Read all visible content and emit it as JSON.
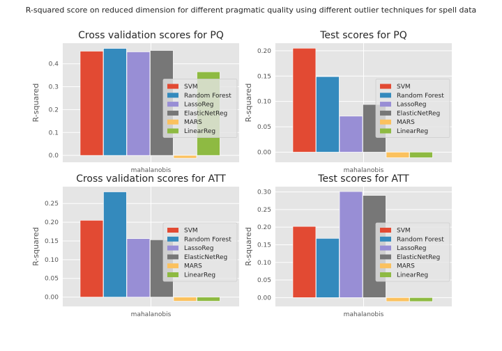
{
  "figure": {
    "title": "R-squared score on reduced dimension for different pragmatic quality using different outlier techniques for spell data"
  },
  "legend_entries": [
    {
      "name": "SVM",
      "color": "#E24A33"
    },
    {
      "name": "Random Forest",
      "color": "#348ABD"
    },
    {
      "name": "LassoReg",
      "color": "#988ED5"
    },
    {
      "name": "ElasticNetReg",
      "color": "#777777"
    },
    {
      "name": "MARS",
      "color": "#FBC15E"
    },
    {
      "name": "LinearReg",
      "color": "#8EBA42"
    }
  ],
  "chart_data": [
    {
      "type": "bar",
      "title": "Cross validation scores for PQ",
      "xlabel": "",
      "ylabel": "R-squared",
      "categories": [
        "mahalanobis"
      ],
      "series": [
        {
          "name": "SVM",
          "values": [
            0.455
          ]
        },
        {
          "name": "Random Forest",
          "values": [
            0.467
          ]
        },
        {
          "name": "LassoReg",
          "values": [
            0.452
          ]
        },
        {
          "name": "ElasticNetReg",
          "values": [
            0.458
          ]
        },
        {
          "name": "MARS",
          "values": [
            -0.012
          ]
        },
        {
          "name": "LinearReg",
          "values": [
            0.365
          ]
        }
      ],
      "ylim": [
        -0.03,
        0.49
      ],
      "yticks": [
        0.0,
        0.1,
        0.2,
        0.3,
        0.4
      ],
      "ytick_labels": [
        "0.0",
        "0.1",
        "0.2",
        "0.3",
        "0.4"
      ],
      "grid": true,
      "legend": "center-right"
    },
    {
      "type": "bar",
      "title": "Test scores for PQ",
      "xlabel": "",
      "ylabel": "R-squared",
      "categories": [
        "mahalanobis"
      ],
      "series": [
        {
          "name": "SVM",
          "values": [
            0.205
          ]
        },
        {
          "name": "Random Forest",
          "values": [
            0.149
          ]
        },
        {
          "name": "LassoReg",
          "values": [
            0.071
          ]
        },
        {
          "name": "ElasticNetReg",
          "values": [
            0.094
          ]
        },
        {
          "name": "MARS",
          "values": [
            -0.011
          ]
        },
        {
          "name": "LinearReg",
          "values": [
            -0.011
          ]
        }
      ],
      "ylim": [
        -0.02,
        0.215
      ],
      "yticks": [
        0.0,
        0.05,
        0.1,
        0.15,
        0.2
      ],
      "ytick_labels": [
        "0.00",
        "0.05",
        "0.10",
        "0.15",
        "0.20"
      ],
      "grid": true,
      "legend": "center-right"
    },
    {
      "type": "bar",
      "title": "Cross validation scores for ATT",
      "xlabel": "",
      "ylabel": "R-squared",
      "categories": [
        "mahalanobis"
      ],
      "series": [
        {
          "name": "SVM",
          "values": [
            0.205
          ]
        },
        {
          "name": "Random Forest",
          "values": [
            0.281
          ]
        },
        {
          "name": "LassoReg",
          "values": [
            0.156
          ]
        },
        {
          "name": "ElasticNetReg",
          "values": [
            0.153
          ]
        },
        {
          "name": "MARS",
          "values": [
            -0.011
          ]
        },
        {
          "name": "LinearReg",
          "values": [
            -0.011
          ]
        }
      ],
      "ylim": [
        -0.025,
        0.295
      ],
      "yticks": [
        0.0,
        0.05,
        0.1,
        0.15,
        0.2,
        0.25
      ],
      "ytick_labels": [
        "0.00",
        "0.05",
        "0.10",
        "0.15",
        "0.20",
        "0.25"
      ],
      "grid": true,
      "legend": "center-right"
    },
    {
      "type": "bar",
      "title": "Test scores for ATT",
      "xlabel": "",
      "ylabel": "R-squared",
      "categories": [
        "mahalanobis"
      ],
      "series": [
        {
          "name": "SVM",
          "values": [
            0.202
          ]
        },
        {
          "name": "Random Forest",
          "values": [
            0.168
          ]
        },
        {
          "name": "LassoReg",
          "values": [
            0.301
          ]
        },
        {
          "name": "ElasticNetReg",
          "values": [
            0.29
          ]
        },
        {
          "name": "MARS",
          "values": [
            -0.011
          ]
        },
        {
          "name": "LinearReg",
          "values": [
            -0.011
          ]
        }
      ],
      "ylim": [
        -0.025,
        0.315
      ],
      "yticks": [
        0.0,
        0.05,
        0.1,
        0.15,
        0.2,
        0.25,
        0.3
      ],
      "ytick_labels": [
        "0.00",
        "0.05",
        "0.10",
        "0.15",
        "0.20",
        "0.25",
        "0.30"
      ],
      "grid": true,
      "legend": "center-right"
    }
  ]
}
